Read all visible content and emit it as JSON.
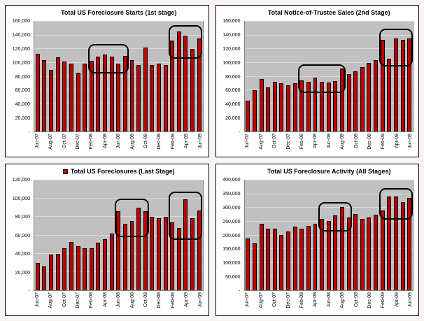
{
  "page": {
    "background": "#f8f4f3"
  },
  "chart_data": [
    {
      "id": "foreclosure-starts",
      "type": "bar",
      "title": "Total US Foreclosure Starts (1st stage)",
      "categories": [
        "Jun-07",
        "Jul-07",
        "Aug-07",
        "Sep-07",
        "Oct-07",
        "Nov-07",
        "Dec-07",
        "Jan-08",
        "Feb-08",
        "Mar-08",
        "Apr-08",
        "May-08",
        "Jun-08",
        "Jul-08",
        "Aug-08",
        "Sep-08",
        "Oct-08",
        "Nov-08",
        "Dec-08",
        "Jan-09",
        "Feb-09",
        "Mar-09",
        "Apr-09",
        "May-09",
        "Jun-09"
      ],
      "x_tick_labels": [
        "Jun-07",
        "Aug-07",
        "Oct-07",
        "Dec-07",
        "Feb-08",
        "Apr-08",
        "Jun-08",
        "Aug-08",
        "Oct-08",
        "Dec-08",
        "Feb-09",
        "Apr-09",
        "Jun-09"
      ],
      "values": [
        113000,
        104000,
        90000,
        108000,
        102000,
        99000,
        86000,
        99000,
        103000,
        109000,
        112000,
        109000,
        99000,
        110000,
        104000,
        97000,
        122000,
        97000,
        99000,
        97000,
        133000,
        146000,
        140000,
        120000,
        136000
      ],
      "ylim": [
        0,
        160000
      ],
      "ytick_step": 20000,
      "ytick_labels": [
        "-",
        "20,000",
        "40,000",
        "60,000",
        "80,000",
        "100,000",
        "120,000",
        "140,000",
        "160,000"
      ],
      "bar_color": "#c00000",
      "plot_bg": "#c0c0c0",
      "gridline_color": "#d9d9d9",
      "annotation_color": "#000000",
      "annotations": [
        {
          "from": 8,
          "to": 13,
          "y0": 85000,
          "y1": 127000
        },
        {
          "from": 20,
          "to": 24,
          "y0": 106000,
          "y1": 155000
        }
      ]
    },
    {
      "id": "trustee-sales",
      "type": "bar",
      "title": "Total Notice-of-Trustee Sales (2nd Stage)",
      "categories": [
        "Jun-07",
        "Jul-07",
        "Aug-07",
        "Sep-07",
        "Oct-07",
        "Nov-07",
        "Dec-07",
        "Jan-08",
        "Feb-08",
        "Mar-08",
        "Apr-08",
        "May-08",
        "Jun-08",
        "Jul-08",
        "Aug-08",
        "Sep-08",
        "Oct-08",
        "Nov-08",
        "Dec-08",
        "Jan-09",
        "Feb-09",
        "Mar-09",
        "Apr-09",
        "May-09",
        "Jun-09"
      ],
      "x_tick_labels": [
        "Jun-07",
        "Aug-07",
        "Oct-07",
        "Dec-07",
        "Feb-08",
        "Apr-08",
        "Jun-08",
        "Aug-08",
        "Oct-08",
        "Dec-08",
        "Feb-09",
        "Apr-09",
        "Jun-09"
      ],
      "values": [
        45000,
        60000,
        76000,
        64000,
        72000,
        70000,
        67000,
        70000,
        74000,
        72000,
        78000,
        72000,
        71000,
        73000,
        92000,
        84000,
        88000,
        94000,
        100000,
        104000,
        134000,
        106000,
        136000,
        134000,
        136000
      ],
      "ylim": [
        0,
        160000
      ],
      "ytick_step": 20000,
      "ytick_labels": [
        "-",
        "20,000",
        "40,000",
        "60,000",
        "80,000",
        "100,000",
        "120,000",
        "140,000",
        "160,000"
      ],
      "bar_color": "#c00000",
      "plot_bg": "#c0c0c0",
      "gridline_color": "#d9d9d9",
      "annotation_color": "#000000",
      "annotations": [
        {
          "from": 8,
          "to": 14,
          "y0": 56000,
          "y1": 98000
        },
        {
          "from": 20,
          "to": 24,
          "y0": 95000,
          "y1": 150000
        }
      ]
    },
    {
      "id": "foreclosures-last-stage",
      "type": "bar",
      "title": "Total US Foreclosures (Last Stage)",
      "legend_marker": true,
      "categories": [
        "Jun-07",
        "Jul-07",
        "Aug-07",
        "Sep-07",
        "Oct-07",
        "Nov-07",
        "Dec-07",
        "Jan-08",
        "Feb-08",
        "Mar-08",
        "Apr-08",
        "May-08",
        "Jun-08",
        "Jul-08",
        "Aug-08",
        "Sep-08",
        "Oct-08",
        "Nov-08",
        "Dec-08",
        "Jan-09",
        "Feb-09",
        "Mar-09",
        "Apr-09",
        "May-09",
        "Jun-09"
      ],
      "x_tick_labels": [
        "Jun-07",
        "Aug-07",
        "Oct-07",
        "Dec-07",
        "Feb-08",
        "Apr-08",
        "Jun-08",
        "Aug-08",
        "Oct-08",
        "Dec-08",
        "Feb-09",
        "Apr-09",
        "Jun-09"
      ],
      "values": [
        30000,
        26000,
        39000,
        40000,
        46000,
        53000,
        48000,
        46000,
        46000,
        52000,
        56000,
        62000,
        86000,
        73000,
        76000,
        90000,
        86000,
        80000,
        79000,
        80000,
        74000,
        68000,
        99000,
        79000,
        87000
      ],
      "ylim": [
        0,
        120000
      ],
      "ytick_step": 20000,
      "ytick_labels": [
        "-",
        "20,000",
        "40,000",
        "60,000",
        "80,000",
        "100,000",
        "120,000"
      ],
      "bar_color": "#c00000",
      "plot_bg": "#c0c0c0",
      "gridline_color": "#d9d9d9",
      "annotation_color": "#000000",
      "annotations": [
        {
          "from": 12,
          "to": 16,
          "y0": 58000,
          "y1": 100000
        },
        {
          "from": 20,
          "to": 24,
          "y0": 55000,
          "y1": 108000
        }
      ]
    },
    {
      "id": "foreclosure-activity-all",
      "type": "bar",
      "title": "Total US Foreclosure Activity (All Stages)",
      "categories": [
        "Jun-07",
        "Jul-07",
        "Aug-07",
        "Sep-07",
        "Oct-07",
        "Nov-07",
        "Dec-07",
        "Jan-08",
        "Feb-08",
        "Mar-08",
        "Apr-08",
        "May-08",
        "Jun-08",
        "Jul-08",
        "Aug-08",
        "Sep-08",
        "Oct-08",
        "Nov-08",
        "Dec-08",
        "Jan-09",
        "Feb-09",
        "Mar-09",
        "Apr-09",
        "May-09",
        "Jun-09"
      ],
      "x_tick_labels": [
        "Jun-07",
        "Aug-07",
        "Oct-07",
        "Dec-07",
        "Feb-08",
        "Apr-08",
        "Jun-08",
        "Aug-08",
        "Oct-08",
        "Dec-08",
        "Feb-09",
        "Apr-09",
        "Jun-09"
      ],
      "values": [
        188000,
        172000,
        243000,
        223000,
        224000,
        201000,
        215000,
        233000,
        223000,
        234000,
        243000,
        261000,
        252000,
        272000,
        304000,
        265000,
        279000,
        259000,
        264000,
        274000,
        290000,
        341000,
        342000,
        321000,
        336000
      ],
      "ylim": [
        0,
        400000
      ],
      "ytick_step": 50000,
      "ytick_labels": [
        "-",
        "50,000",
        "100,000",
        "150,000",
        "200,000",
        "250,000",
        "300,000",
        "350,000",
        "400,000"
      ],
      "bar_color": "#c00000",
      "plot_bg": "#c0c0c0",
      "gridline_color": "#d9d9d9",
      "annotation_color": "#000000",
      "annotations": [
        {
          "from": 11,
          "to": 15,
          "y0": 215000,
          "y1": 320000
        },
        {
          "from": 20,
          "to": 24,
          "y0": 258000,
          "y1": 372000
        }
      ]
    }
  ]
}
